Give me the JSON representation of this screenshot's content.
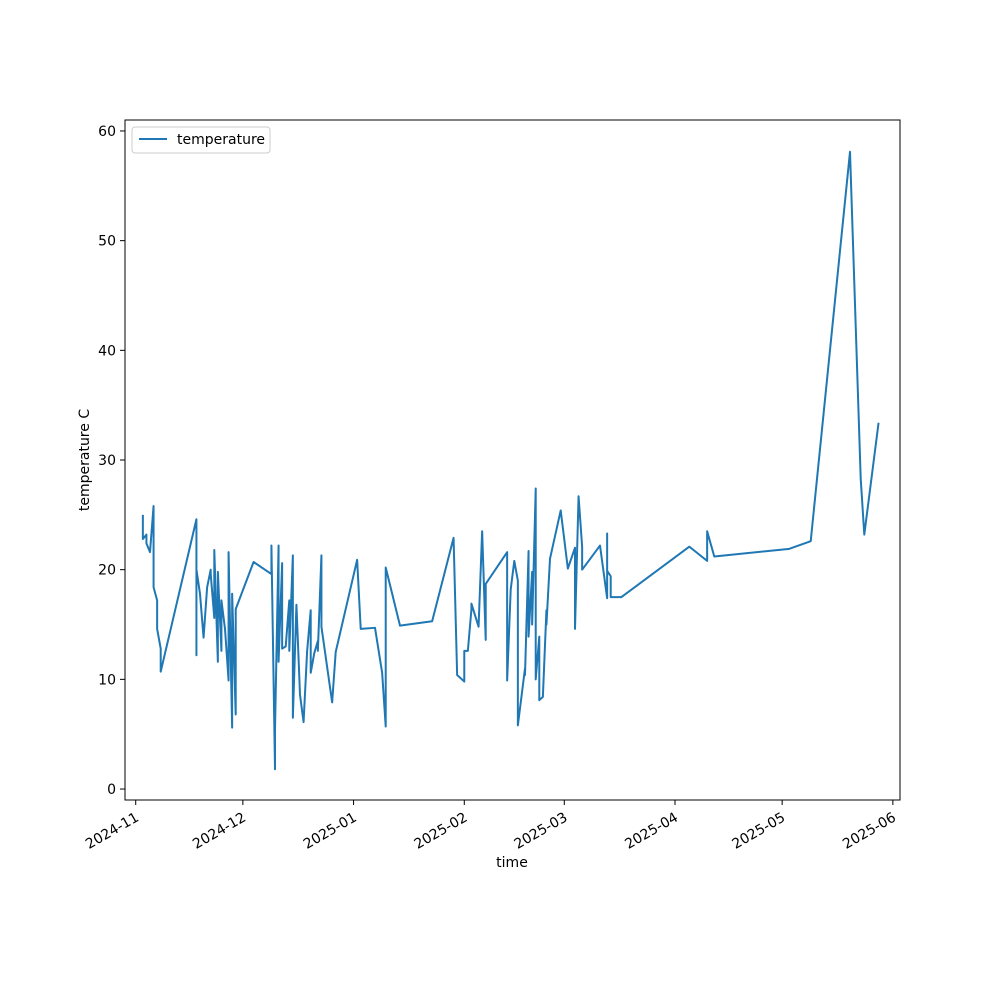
{
  "chart_data": {
    "type": "line",
    "title": "",
    "xlabel": "time",
    "ylabel": "temperature C",
    "x_axis_type": "date",
    "xlim": [
      "2024-10-29",
      "2025-06-03"
    ],
    "ylim": [
      -1,
      61
    ],
    "y_ticks": [
      0,
      10,
      20,
      30,
      40,
      50,
      60
    ],
    "x_ticks": [
      "2024-11-01",
      "2024-12-01",
      "2025-01-01",
      "2025-02-01",
      "2025-03-01",
      "2025-04-01",
      "2025-05-01",
      "2025-06-01"
    ],
    "x_tick_labels": [
      "2024-11",
      "2024-12",
      "2025-01",
      "2025-02",
      "2025-03",
      "2025-04",
      "2025-05",
      "2025-06"
    ],
    "grid": false,
    "legend": {
      "position": "top-left",
      "entries": [
        "temperature"
      ]
    },
    "colors": {
      "temperature": "#1f77b4"
    },
    "series": [
      {
        "name": "temperature",
        "points": [
          [
            "2024-11-03",
            25.0
          ],
          [
            "2024-11-03",
            22.8
          ],
          [
            "2024-11-04",
            23.2
          ],
          [
            "2024-11-04",
            22.4
          ],
          [
            "2024-11-05",
            21.6
          ],
          [
            "2024-11-06",
            25.8
          ],
          [
            "2024-11-06",
            18.4
          ],
          [
            "2024-11-07",
            17.2
          ],
          [
            "2024-11-07",
            14.6
          ],
          [
            "2024-11-08",
            12.8
          ],
          [
            "2024-11-08",
            10.7
          ],
          [
            "2024-11-18",
            24.6
          ],
          [
            "2024-11-18",
            12.2
          ],
          [
            "2024-11-18",
            20.0
          ],
          [
            "2024-11-19",
            17.8
          ],
          [
            "2024-11-20",
            13.8
          ],
          [
            "2024-11-21",
            18.4
          ],
          [
            "2024-11-22",
            20.0
          ],
          [
            "2024-11-22",
            19.6
          ],
          [
            "2024-11-23",
            15.6
          ],
          [
            "2024-11-23",
            21.8
          ],
          [
            "2024-11-24",
            11.6
          ],
          [
            "2024-11-24",
            19.8
          ],
          [
            "2024-11-25",
            12.6
          ],
          [
            "2024-11-25",
            17.2
          ],
          [
            "2024-11-26",
            14.6
          ],
          [
            "2024-11-27",
            9.9
          ],
          [
            "2024-11-27",
            21.6
          ],
          [
            "2024-11-28",
            5.6
          ],
          [
            "2024-11-28",
            17.8
          ],
          [
            "2024-11-29",
            6.8
          ],
          [
            "2024-11-29",
            16.4
          ],
          [
            "2024-12-04",
            20.7
          ],
          [
            "2024-12-09",
            19.6
          ],
          [
            "2024-12-09",
            22.2
          ],
          [
            "2024-12-10",
            1.8
          ],
          [
            "2024-12-10",
            8.2
          ],
          [
            "2024-12-10",
            5.4
          ],
          [
            "2024-12-11",
            22.2
          ],
          [
            "2024-12-11",
            11.6
          ],
          [
            "2024-12-12",
            20.6
          ],
          [
            "2024-12-12",
            12.8
          ],
          [
            "2024-12-13",
            13.0
          ],
          [
            "2024-12-14",
            17.2
          ],
          [
            "2024-12-14",
            12.6
          ],
          [
            "2024-12-15",
            21.3
          ],
          [
            "2024-12-15",
            6.5
          ],
          [
            "2024-12-16",
            16.8
          ],
          [
            "2024-12-17",
            8.6
          ],
          [
            "2024-12-18",
            6.1
          ],
          [
            "2024-12-19",
            12.6
          ],
          [
            "2024-12-20",
            16.3
          ],
          [
            "2024-12-20",
            10.6
          ],
          [
            "2024-12-21",
            12.4
          ],
          [
            "2024-12-22",
            13.5
          ],
          [
            "2024-12-22",
            12.6
          ],
          [
            "2024-12-23",
            21.3
          ],
          [
            "2024-12-23",
            14.8
          ],
          [
            "2024-12-26",
            7.9
          ],
          [
            "2024-12-27",
            12.5
          ],
          [
            "2025-01-02",
            20.9
          ],
          [
            "2025-01-03",
            14.6
          ],
          [
            "2025-01-07",
            14.7
          ],
          [
            "2025-01-09",
            10.6
          ],
          [
            "2025-01-10",
            5.7
          ],
          [
            "2025-01-10",
            20.2
          ],
          [
            "2025-01-14",
            14.9
          ],
          [
            "2025-01-23",
            15.3
          ],
          [
            "2025-01-29",
            22.9
          ],
          [
            "2025-01-30",
            10.4
          ],
          [
            "2025-02-01",
            9.8
          ],
          [
            "2025-02-01",
            12.6
          ],
          [
            "2025-02-02",
            12.6
          ],
          [
            "2025-02-03",
            16.4
          ],
          [
            "2025-02-03",
            16.9
          ],
          [
            "2025-02-05",
            14.8
          ],
          [
            "2025-02-06",
            23.5
          ],
          [
            "2025-02-07",
            13.6
          ],
          [
            "2025-02-07",
            18.7
          ],
          [
            "2025-02-13",
            21.6
          ],
          [
            "2025-02-13",
            9.9
          ],
          [
            "2025-02-14",
            18.2
          ],
          [
            "2025-02-15",
            20.8
          ],
          [
            "2025-02-16",
            19.0
          ],
          [
            "2025-02-16",
            5.8
          ],
          [
            "2025-02-18",
            11.0
          ],
          [
            "2025-02-18",
            10.4
          ],
          [
            "2025-02-19",
            21.7
          ],
          [
            "2025-02-19",
            13.9
          ],
          [
            "2025-02-20",
            19.8
          ],
          [
            "2025-02-20",
            15.0
          ],
          [
            "2025-02-21",
            27.4
          ],
          [
            "2025-02-21",
            10.0
          ],
          [
            "2025-02-22",
            13.9
          ],
          [
            "2025-02-22",
            8.1
          ],
          [
            "2025-02-23",
            8.4
          ],
          [
            "2025-02-24",
            16.3
          ],
          [
            "2025-02-24",
            15.0
          ],
          [
            "2025-02-25",
            21.0
          ],
          [
            "2025-02-28",
            25.4
          ],
          [
            "2025-03-02",
            20.1
          ],
          [
            "2025-03-04",
            22.0
          ],
          [
            "2025-03-04",
            14.6
          ],
          [
            "2025-03-05",
            26.7
          ],
          [
            "2025-03-06",
            22.1
          ],
          [
            "2025-03-06",
            20.0
          ],
          [
            "2025-03-11",
            22.2
          ],
          [
            "2025-03-13",
            17.4
          ],
          [
            "2025-03-13",
            23.3
          ],
          [
            "2025-03-13",
            19.9
          ],
          [
            "2025-03-14",
            19.4
          ],
          [
            "2025-03-14",
            17.5
          ],
          [
            "2025-03-17",
            17.5
          ],
          [
            "2025-04-05",
            22.1
          ],
          [
            "2025-04-10",
            20.8
          ],
          [
            "2025-04-10",
            23.5
          ],
          [
            "2025-04-12",
            21.2
          ],
          [
            "2025-05-03",
            21.9
          ],
          [
            "2025-05-09",
            22.6
          ],
          [
            "2025-05-20",
            58.1
          ],
          [
            "2025-05-23",
            28.3
          ],
          [
            "2025-05-24",
            23.2
          ],
          [
            "2025-05-28",
            33.4
          ]
        ]
      }
    ]
  }
}
